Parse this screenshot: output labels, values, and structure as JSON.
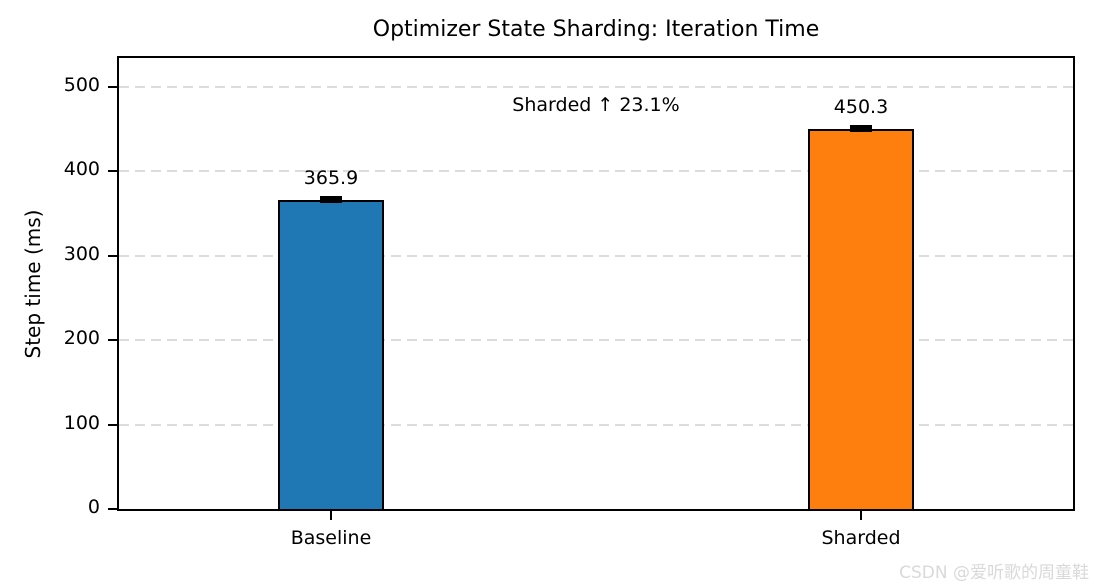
{
  "chart_data": {
    "type": "bar",
    "title": "Optimizer State Sharding: Iteration Time",
    "xlabel": "",
    "ylabel": "Step time (ms)",
    "categories": [
      "Baseline",
      "Sharded"
    ],
    "values": [
      365.9,
      450.3
    ],
    "value_labels": [
      "365.9",
      "450.3"
    ],
    "errors": [
      3,
      3
    ],
    "series": [
      {
        "name": "Baseline",
        "value": 365.9,
        "color": "#1f77b4"
      },
      {
        "name": "Sharded",
        "value": 450.3,
        "color": "#ff7f0e"
      }
    ],
    "bar_colors": [
      "#1f77b4",
      "#ff7f0e"
    ],
    "bar_edge_color": "#000000",
    "annotation": {
      "text": "Sharded ↑ 23.1%"
    },
    "yticks": [
      0,
      100,
      200,
      300,
      400,
      500
    ],
    "ylim": [
      0,
      534
    ],
    "xlim": [
      -0.4,
      1.4
    ],
    "bar_width": 0.2,
    "grid": "horizontal-dashed",
    "grid_color": "#dcdcdc",
    "legend": "none"
  },
  "watermark": "CSDN @爱听歌的周童鞋"
}
